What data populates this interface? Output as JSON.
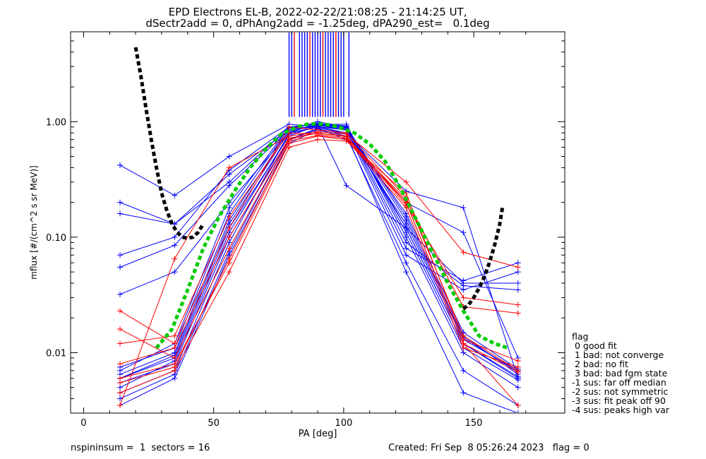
{
  "title": {
    "line1": "EPD Electrons EL-B, 2022-02-22/21:08:25 - 21:14:25 UT,",
    "line2": "dSectr2add = 0, dPhAng2add = -1.25deg, dPA290_est=   0.1deg"
  },
  "footer": {
    "left": "nspininsum =  1  sectors = 16",
    "right": "Created: Fri Sep  8 05:26:24 2023   flag = 0"
  },
  "flag_legend": {
    "title": "flag",
    "items": [
      " 0 good fit",
      " 1 bad: not converge",
      " 2 bad: no fit",
      " 3 bad: bad fgm state",
      "-1 sus: far off median",
      "-2 sus: not symmetric",
      "-3 sus: fit peak off 90",
      "-4 sus: peaks high var"
    ]
  },
  "colors": {
    "series_blue": "#0000ff",
    "series_red": "#ff0000",
    "fit_green": "#00cc00",
    "fit_black": "#000000"
  },
  "chart_data": {
    "type": "line",
    "xlabel": "PA [deg]",
    "ylabel": "mflux [#/(cm^2 s sr MeV)]",
    "xlim": [
      -5,
      185
    ],
    "ylim": [
      0.003,
      6.0
    ],
    "y_scale": "log",
    "x_ticks": [
      0,
      50,
      100,
      150
    ],
    "x_tick_labels": [
      "0",
      "50",
      "100",
      "150"
    ],
    "y_ticks": [
      0.01,
      0.1,
      1.0
    ],
    "y_tick_labels": [
      "0.01",
      "0.10",
      "1.00"
    ],
    "grid": false,
    "legend": "none",
    "pa_bins": [
      14,
      35,
      56,
      79,
      90,
      101,
      124,
      146,
      167
    ],
    "series": [
      {
        "color": "blue",
        "values": [
          0.006,
          0.009,
          0.12,
          0.75,
          0.93,
          0.85,
          0.12,
          0.012,
          0.006
        ]
      },
      {
        "color": "blue",
        "values": [
          0.0045,
          0.007,
          0.09,
          0.8,
          0.97,
          0.9,
          0.15,
          0.014,
          0.0065
        ]
      },
      {
        "color": "blue",
        "values": [
          0.007,
          0.012,
          0.18,
          0.9,
          0.95,
          0.95,
          0.1,
          0.01,
          0.005
        ]
      },
      {
        "color": "blue",
        "values": [
          0.0055,
          0.008,
          0.1,
          0.7,
          0.88,
          0.8,
          0.13,
          0.013,
          0.007
        ]
      },
      {
        "color": "blue",
        "values": [
          0.0065,
          0.01,
          0.14,
          0.85,
          1.0,
          0.9,
          0.11,
          0.011,
          0.0058
        ]
      },
      {
        "color": "blue",
        "values": [
          0.005,
          0.0085,
          0.11,
          0.78,
          0.9,
          0.86,
          0.16,
          0.015,
          0.0072
        ]
      },
      {
        "color": "blue",
        "values": [
          0.0075,
          0.011,
          0.16,
          0.88,
          0.96,
          0.92,
          0.12,
          0.012,
          0.0062
        ]
      },
      {
        "color": "blue",
        "values": [
          0.006,
          0.0095,
          0.13,
          0.82,
          0.94,
          0.88,
          0.14,
          0.0135,
          0.0068
        ]
      },
      {
        "color": "blue",
        "values": [
          0.42,
          0.23,
          0.5,
          0.95,
          0.9,
          0.8,
          0.25,
          0.18,
          0.006
        ]
      },
      {
        "color": "blue",
        "values": [
          0.2,
          0.13,
          0.3,
          0.9,
          0.88,
          0.7,
          0.2,
          0.11,
          0.009
        ]
      },
      {
        "color": "blue",
        "values": [
          0.16,
          0.13,
          0.35,
          0.85,
          0.92,
          0.28,
          0.12,
          0.04,
          0.04
        ]
      },
      {
        "color": "blue",
        "values": [
          0.07,
          0.1,
          0.38,
          0.9,
          0.95,
          0.9,
          0.09,
          0.038,
          0.035
        ]
      },
      {
        "color": "blue",
        "values": [
          0.055,
          0.085,
          0.28,
          0.85,
          0.92,
          0.88,
          0.08,
          0.042,
          0.06
        ]
      },
      {
        "color": "blue",
        "values": [
          0.032,
          0.05,
          0.2,
          0.8,
          0.9,
          0.85,
          0.07,
          0.035,
          0.05
        ]
      },
      {
        "color": "blue",
        "values": [
          0.0035,
          0.006,
          0.07,
          0.65,
          0.85,
          0.75,
          0.06,
          0.007,
          0.0035
        ]
      },
      {
        "color": "blue",
        "values": [
          0.004,
          0.0065,
          0.075,
          0.7,
          0.86,
          0.78,
          0.05,
          0.0045,
          0.003
        ]
      },
      {
        "color": "red",
        "values": [
          0.006,
          0.008,
          0.06,
          0.65,
          0.75,
          0.7,
          0.18,
          0.011,
          0.0075
        ]
      },
      {
        "color": "red",
        "values": [
          0.016,
          0.009,
          0.08,
          0.7,
          0.8,
          0.75,
          0.2,
          0.012,
          0.0068
        ]
      },
      {
        "color": "red",
        "values": [
          0.023,
          0.012,
          0.12,
          0.9,
          0.85,
          0.8,
          0.22,
          0.014,
          0.007
        ]
      },
      {
        "color": "red",
        "values": [
          0.0045,
          0.007,
          0.05,
          0.6,
          0.7,
          0.68,
          0.24,
          0.013,
          0.0085
        ]
      },
      {
        "color": "red",
        "values": [
          0.0035,
          0.065,
          0.4,
          0.75,
          0.82,
          0.78,
          0.3,
          0.074,
          0.055
        ]
      },
      {
        "color": "red",
        "values": [
          0.008,
          0.011,
          0.1,
          0.72,
          0.8,
          0.74,
          0.19,
          0.03,
          0.026
        ]
      },
      {
        "color": "red",
        "values": [
          0.012,
          0.014,
          0.15,
          0.8,
          0.78,
          0.72,
          0.21,
          0.025,
          0.022
        ]
      },
      {
        "color": "red",
        "values": [
          0.0055,
          0.0075,
          0.065,
          0.68,
          0.76,
          0.7,
          0.2,
          0.012,
          0.0035
        ]
      }
    ],
    "fits": [
      {
        "color": "green",
        "style": "dashed",
        "x": [
          28,
          34,
          40,
          46,
          52,
          58,
          64,
          70,
          76,
          82,
          86,
          90,
          94,
          98,
          104,
          110,
          116,
          122,
          128,
          134,
          140,
          146,
          152,
          158,
          163
        ],
        "y": [
          0.011,
          0.016,
          0.035,
          0.08,
          0.15,
          0.25,
          0.4,
          0.58,
          0.78,
          0.9,
          0.95,
          0.96,
          0.94,
          0.9,
          0.8,
          0.64,
          0.45,
          0.26,
          0.14,
          0.075,
          0.04,
          0.023,
          0.014,
          0.012,
          0.011
        ]
      },
      {
        "color": "black",
        "style": "dashed",
        "x": [
          20,
          22,
          24,
          26,
          28,
          30,
          32,
          34,
          36,
          38,
          40,
          42,
          44,
          46
        ],
        "y": [
          4.4,
          2.5,
          1.3,
          0.7,
          0.4,
          0.24,
          0.17,
          0.13,
          0.11,
          0.1,
          0.098,
          0.1,
          0.11,
          0.13
        ]
      },
      {
        "color": "black",
        "style": "dashed",
        "x": [
          146,
          148,
          150,
          152,
          154,
          156,
          158,
          160,
          161
        ],
        "y": [
          0.024,
          0.026,
          0.03,
          0.036,
          0.045,
          0.06,
          0.085,
          0.13,
          0.18
        ]
      }
    ],
    "spikes_x": [
      79,
      80,
      81,
      83,
      84,
      85,
      86,
      87,
      88,
      89,
      90,
      91,
      92,
      93,
      94,
      95,
      96,
      97,
      98,
      99,
      100,
      102
    ]
  }
}
